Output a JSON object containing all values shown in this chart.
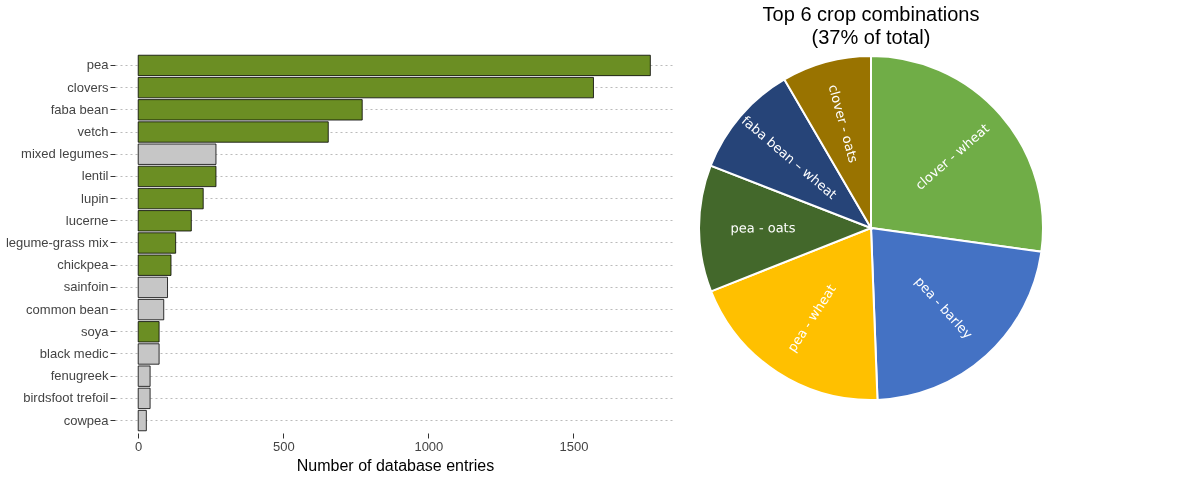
{
  "chart_data": [
    {
      "type": "bar",
      "orientation": "horizontal",
      "xlabel": "Number of database entries",
      "categories": [
        "pea",
        "clovers",
        "faba bean",
        "vetch",
        "mixed legumes",
        "lentil",
        "lupin",
        "lucerne",
        "legume-grass mix",
        "chickpea",
        "sainfoin",
        "common bean",
        "soya",
        "black medic",
        "fenugreek",
        "birdsfoot trefoil",
        "cowpea"
      ],
      "values": [
        1765,
        1569,
        772,
        655,
        268,
        268,
        224,
        183,
        129,
        113,
        101,
        88,
        72,
        72,
        41,
        41,
        28
      ],
      "colors": [
        "#6b8e23",
        "#6b8e23",
        "#6b8e23",
        "#6b8e23",
        "#c6c6c6",
        "#6b8e23",
        "#6b8e23",
        "#6b8e23",
        "#6b8e23",
        "#6b8e23",
        "#c6c6c6",
        "#c6c6c6",
        "#6b8e23",
        "#c6c6c6",
        "#c6c6c6",
        "#c6c6c6",
        "#c6c6c6"
      ],
      "xlim": [
        -80,
        1850
      ],
      "xticks": [
        0,
        500,
        1000,
        1500
      ],
      "grid": "y"
    },
    {
      "type": "pie",
      "title": "Top 6 crop combinations",
      "subtitle": "(37% of total)",
      "categories": [
        "clover - wheat",
        "pea - barley",
        "pea - wheat",
        "pea - oats",
        "faba bean – wheat",
        "clover - oats"
      ],
      "values": [
        27.2,
        22.2,
        19.6,
        11.9,
        10.7,
        8.4
      ],
      "colors": [
        "#70ad47",
        "#4472c4",
        "#ffc000",
        "#43682b",
        "#264478",
        "#997300"
      ]
    }
  ]
}
